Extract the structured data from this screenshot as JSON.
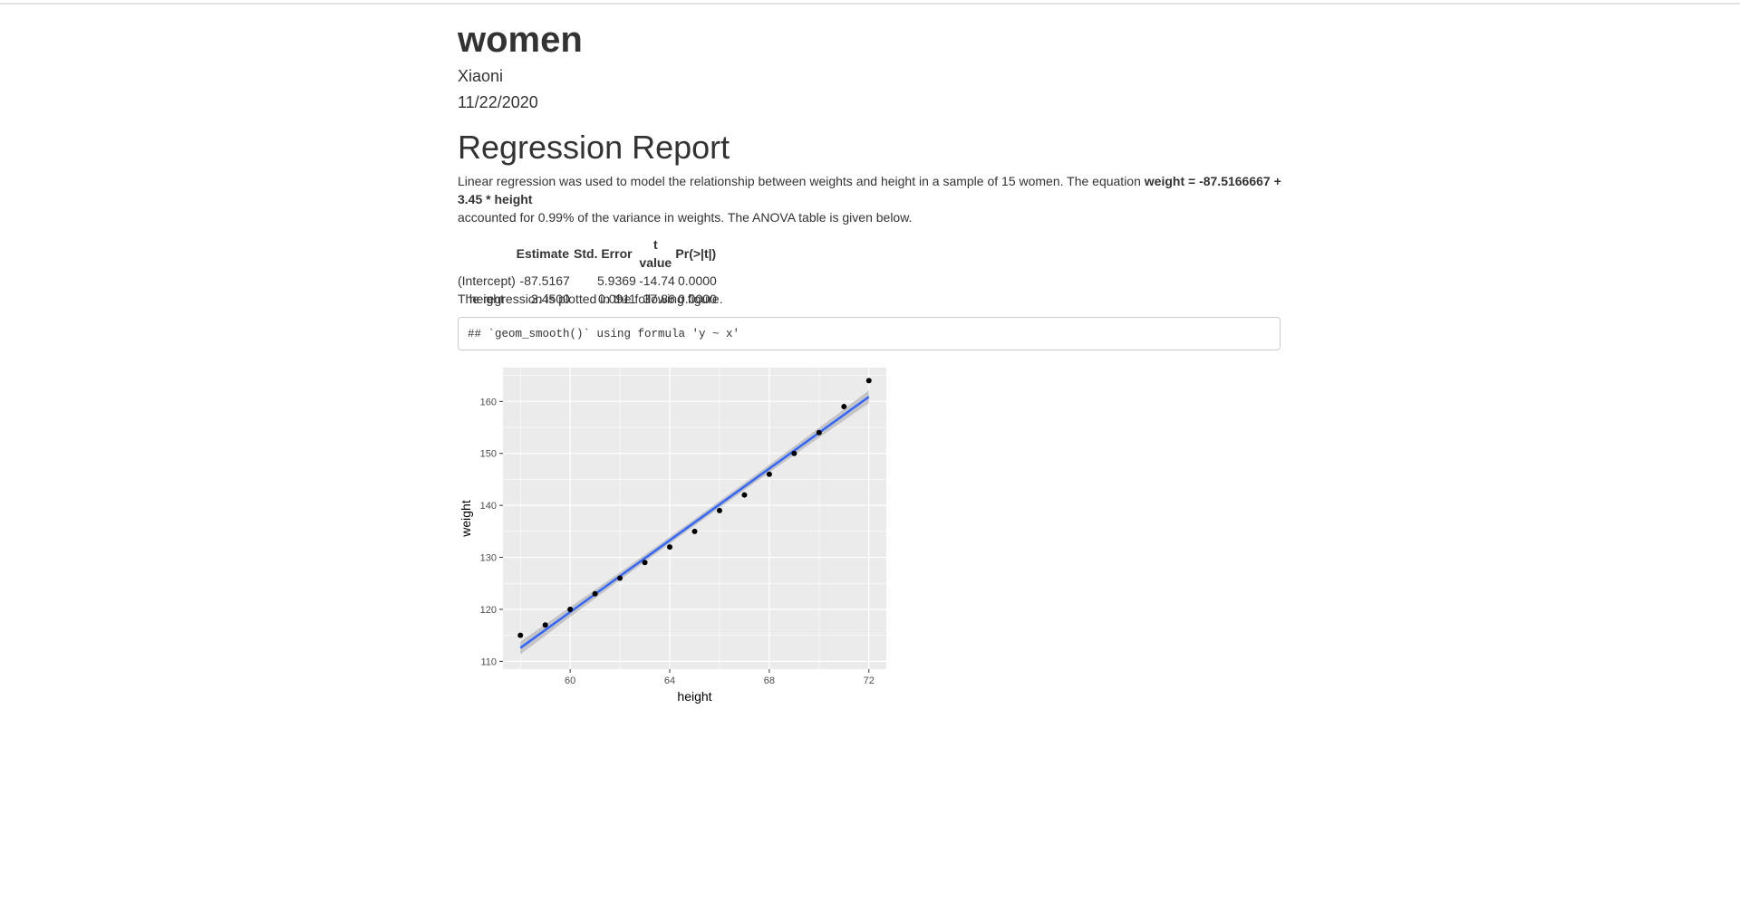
{
  "report": {
    "title": "women",
    "author": "Xiaoni",
    "date": "11/22/2020",
    "heading": "Regression Report",
    "intro_pre": "Linear regression was used to model the relationship between weights and height in a sample of 15 women. The equation ",
    "equation": "weight = -87.5166667 + 3.45 * height",
    "intro_post": "accounted for 0.99% of the variance in weights. The ANOVA table is given below.",
    "figure_note": "The regression is plotted in the following figure.",
    "code_output": "## `geom_smooth()` using formula 'y ~ x'"
  },
  "anova_table": {
    "columns": [
      "",
      "Estimate",
      "Std. Error",
      "t value",
      "Pr(>|t|)"
    ],
    "rows": [
      [
        "(Intercept)",
        "-87.5167",
        "5.9369",
        "-14.74",
        "0.0000"
      ],
      [
        "height",
        "3.4500",
        "0.0911",
        "37.86",
        "0.0000"
      ]
    ]
  },
  "chart_data": {
    "type": "scatter",
    "xlabel": "height",
    "ylabel": "weight",
    "x_ticks": [
      60,
      64,
      68,
      72
    ],
    "y_ticks": [
      110,
      120,
      130,
      140,
      150,
      160
    ],
    "xlim": [
      57.3,
      72.7
    ],
    "ylim": [
      108.5,
      166.5
    ],
    "points": {
      "x": [
        58,
        59,
        60,
        61,
        62,
        63,
        64,
        65,
        66,
        67,
        68,
        69,
        70,
        71,
        72
      ],
      "y": [
        115,
        117,
        120,
        123,
        126,
        129,
        132,
        135,
        139,
        142,
        146,
        150,
        154,
        159,
        164
      ]
    },
    "fit_line": {
      "intercept": -87.5166667,
      "slope": 3.45,
      "x_range": [
        58,
        72
      ]
    },
    "grid": true,
    "colors": {
      "panel": "#ebebeb",
      "grid": "#ffffff",
      "line": "#3366ff",
      "band": "#bdbdbd",
      "points": "#000000"
    }
  }
}
